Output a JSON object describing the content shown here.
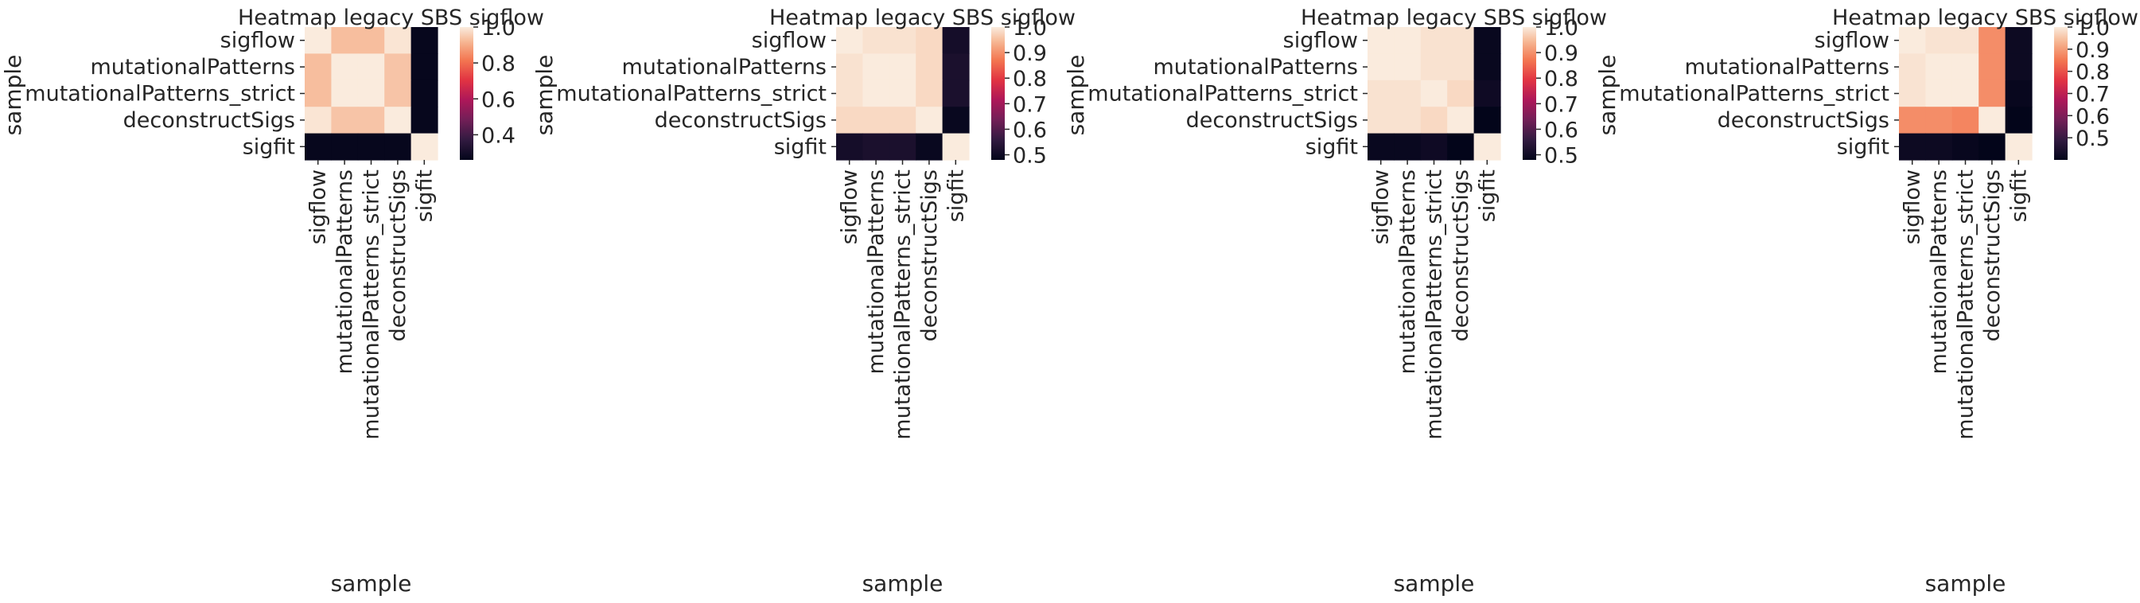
{
  "chart_data": [
    {
      "type": "heatmap",
      "title": "Heatmap legacy SBS sigflow",
      "xlabel": "sample",
      "ylabel": "sample",
      "rows": [
        "sigflow",
        "mutationalPatterns",
        "mutationalPatterns_strict",
        "deconstructSigs",
        "sigfit"
      ],
      "cols": [
        "sigflow",
        "mutationalPatterns",
        "mutationalPatterns_strict",
        "deconstructSigs",
        "sigfit"
      ],
      "values": [
        [
          1.0,
          0.93,
          0.93,
          0.99,
          0.27
        ],
        [
          0.93,
          1.0,
          1.0,
          0.94,
          0.27
        ],
        [
          0.93,
          1.0,
          1.0,
          0.94,
          0.27
        ],
        [
          0.99,
          0.94,
          0.94,
          1.0,
          0.27
        ],
        [
          0.27,
          0.27,
          0.27,
          0.27,
          1.0
        ]
      ],
      "colorbar": {
        "vmin": 0.26,
        "vmax": 1.0,
        "ticks": [
          "0.4",
          "0.6",
          "0.8",
          "1.0"
        ],
        "tick_values": [
          0.4,
          0.6,
          0.8,
          1.0
        ]
      }
    },
    {
      "type": "heatmap",
      "title": "Heatmap legacy SBS sigflow",
      "xlabel": "sample",
      "ylabel": "sample",
      "rows": [
        "sigflow",
        "mutationalPatterns",
        "mutationalPatterns_strict",
        "deconstructSigs",
        "sigfit"
      ],
      "cols": [
        "sigflow",
        "mutationalPatterns",
        "mutationalPatterns_strict",
        "deconstructSigs",
        "sigfit"
      ],
      "values": [
        [
          1.0,
          0.99,
          0.99,
          0.98,
          0.51
        ],
        [
          0.99,
          1.0,
          1.0,
          0.98,
          0.52
        ],
        [
          0.99,
          1.0,
          1.0,
          0.98,
          0.52
        ],
        [
          0.98,
          0.98,
          0.98,
          1.0,
          0.49
        ],
        [
          0.51,
          0.52,
          0.52,
          0.49,
          1.0
        ]
      ],
      "colorbar": {
        "vmin": 0.48,
        "vmax": 1.0,
        "ticks": [
          "0.5",
          "0.6",
          "0.7",
          "0.8",
          "0.9",
          "1.0"
        ],
        "tick_values": [
          0.5,
          0.6,
          0.7,
          0.8,
          0.9,
          1.0
        ]
      }
    },
    {
      "type": "heatmap",
      "title": "Heatmap legacy SBS sigflow",
      "xlabel": "sample",
      "ylabel": "sample",
      "rows": [
        "sigflow",
        "mutationalPatterns",
        "mutationalPatterns_strict",
        "deconstructSigs",
        "sigfit"
      ],
      "cols": [
        "sigflow",
        "mutationalPatterns",
        "mutationalPatterns_strict",
        "deconstructSigs",
        "sigfit"
      ],
      "values": [
        [
          1.0,
          1.0,
          0.99,
          0.99,
          0.49
        ],
        [
          1.0,
          1.0,
          0.99,
          0.99,
          0.49
        ],
        [
          0.99,
          0.99,
          1.0,
          0.98,
          0.5
        ],
        [
          0.99,
          0.99,
          0.98,
          1.0,
          0.48
        ],
        [
          0.49,
          0.49,
          0.5,
          0.48,
          1.0
        ]
      ],
      "colorbar": {
        "vmin": 0.48,
        "vmax": 1.0,
        "ticks": [
          "0.5",
          "0.6",
          "0.7",
          "0.8",
          "0.9",
          "1.0"
        ],
        "tick_values": [
          0.5,
          0.6,
          0.7,
          0.8,
          0.9,
          1.0
        ]
      }
    },
    {
      "type": "heatmap",
      "title": "Heatmap legacy SBS sigflow",
      "xlabel": "sample",
      "ylabel": "sample",
      "rows": [
        "sigflow",
        "mutationalPatterns",
        "mutationalPatterns_strict",
        "deconstructSigs",
        "sigfit"
      ],
      "cols": [
        "sigflow",
        "mutationalPatterns",
        "mutationalPatterns_strict",
        "deconstructSigs",
        "sigfit"
      ],
      "values": [
        [
          1.0,
          0.99,
          0.99,
          0.88,
          0.42
        ],
        [
          0.99,
          1.0,
          1.0,
          0.88,
          0.42
        ],
        [
          0.99,
          1.0,
          1.0,
          0.88,
          0.41
        ],
        [
          0.88,
          0.88,
          0.87,
          1.0,
          0.4
        ],
        [
          0.42,
          0.42,
          0.41,
          0.4,
          1.0
        ]
      ],
      "colorbar": {
        "vmin": 0.4,
        "vmax": 1.0,
        "ticks": [
          "0.5",
          "0.6",
          "0.7",
          "0.8",
          "0.9",
          "1.0"
        ],
        "tick_values": [
          0.5,
          0.6,
          0.7,
          0.8,
          0.9,
          1.0
        ]
      }
    }
  ]
}
